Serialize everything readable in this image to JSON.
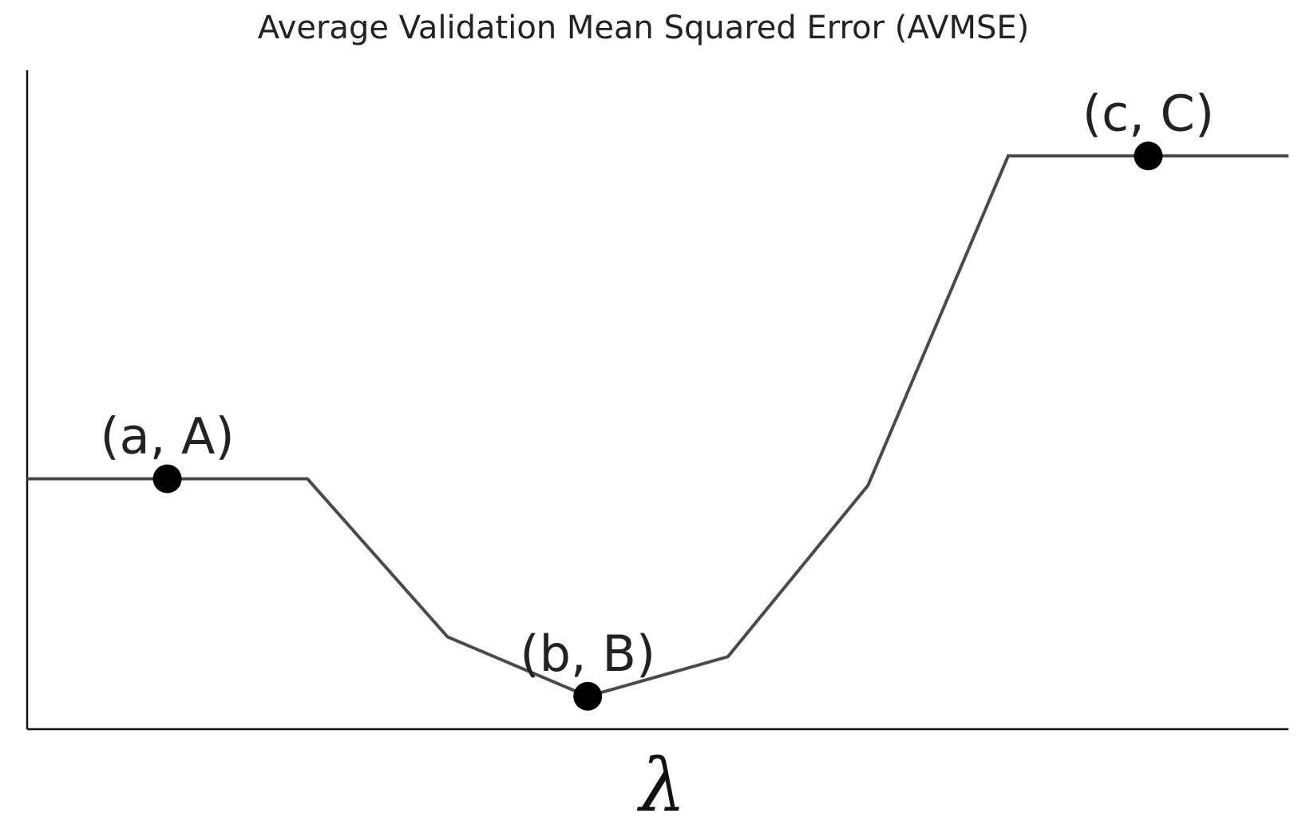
{
  "chart_data": {
    "type": "line",
    "title": "Average Validation Mean Squared Error (AVMSE)",
    "xlabel": "λ",
    "ylabel": "",
    "xlim": [
      0,
      9
    ],
    "ylim": [
      0,
      10
    ],
    "grid": false,
    "legend": "none",
    "line_color": "#4a4a4a",
    "marker_color": "#000000",
    "series": [
      {
        "x": [
          0,
          2,
          3,
          4,
          5,
          6,
          7,
          9
        ],
        "y": [
          3.8,
          3.8,
          1.4,
          0.5,
          1.1,
          3.7,
          8.7,
          8.7
        ]
      }
    ],
    "annotations": [
      {
        "label": "(a, A)",
        "x": 1,
        "y": 3.8
      },
      {
        "label": "(b, B)",
        "x": 4,
        "y": 0.5
      },
      {
        "label": "(c, C)",
        "x": 8,
        "y": 8.7
      }
    ]
  }
}
